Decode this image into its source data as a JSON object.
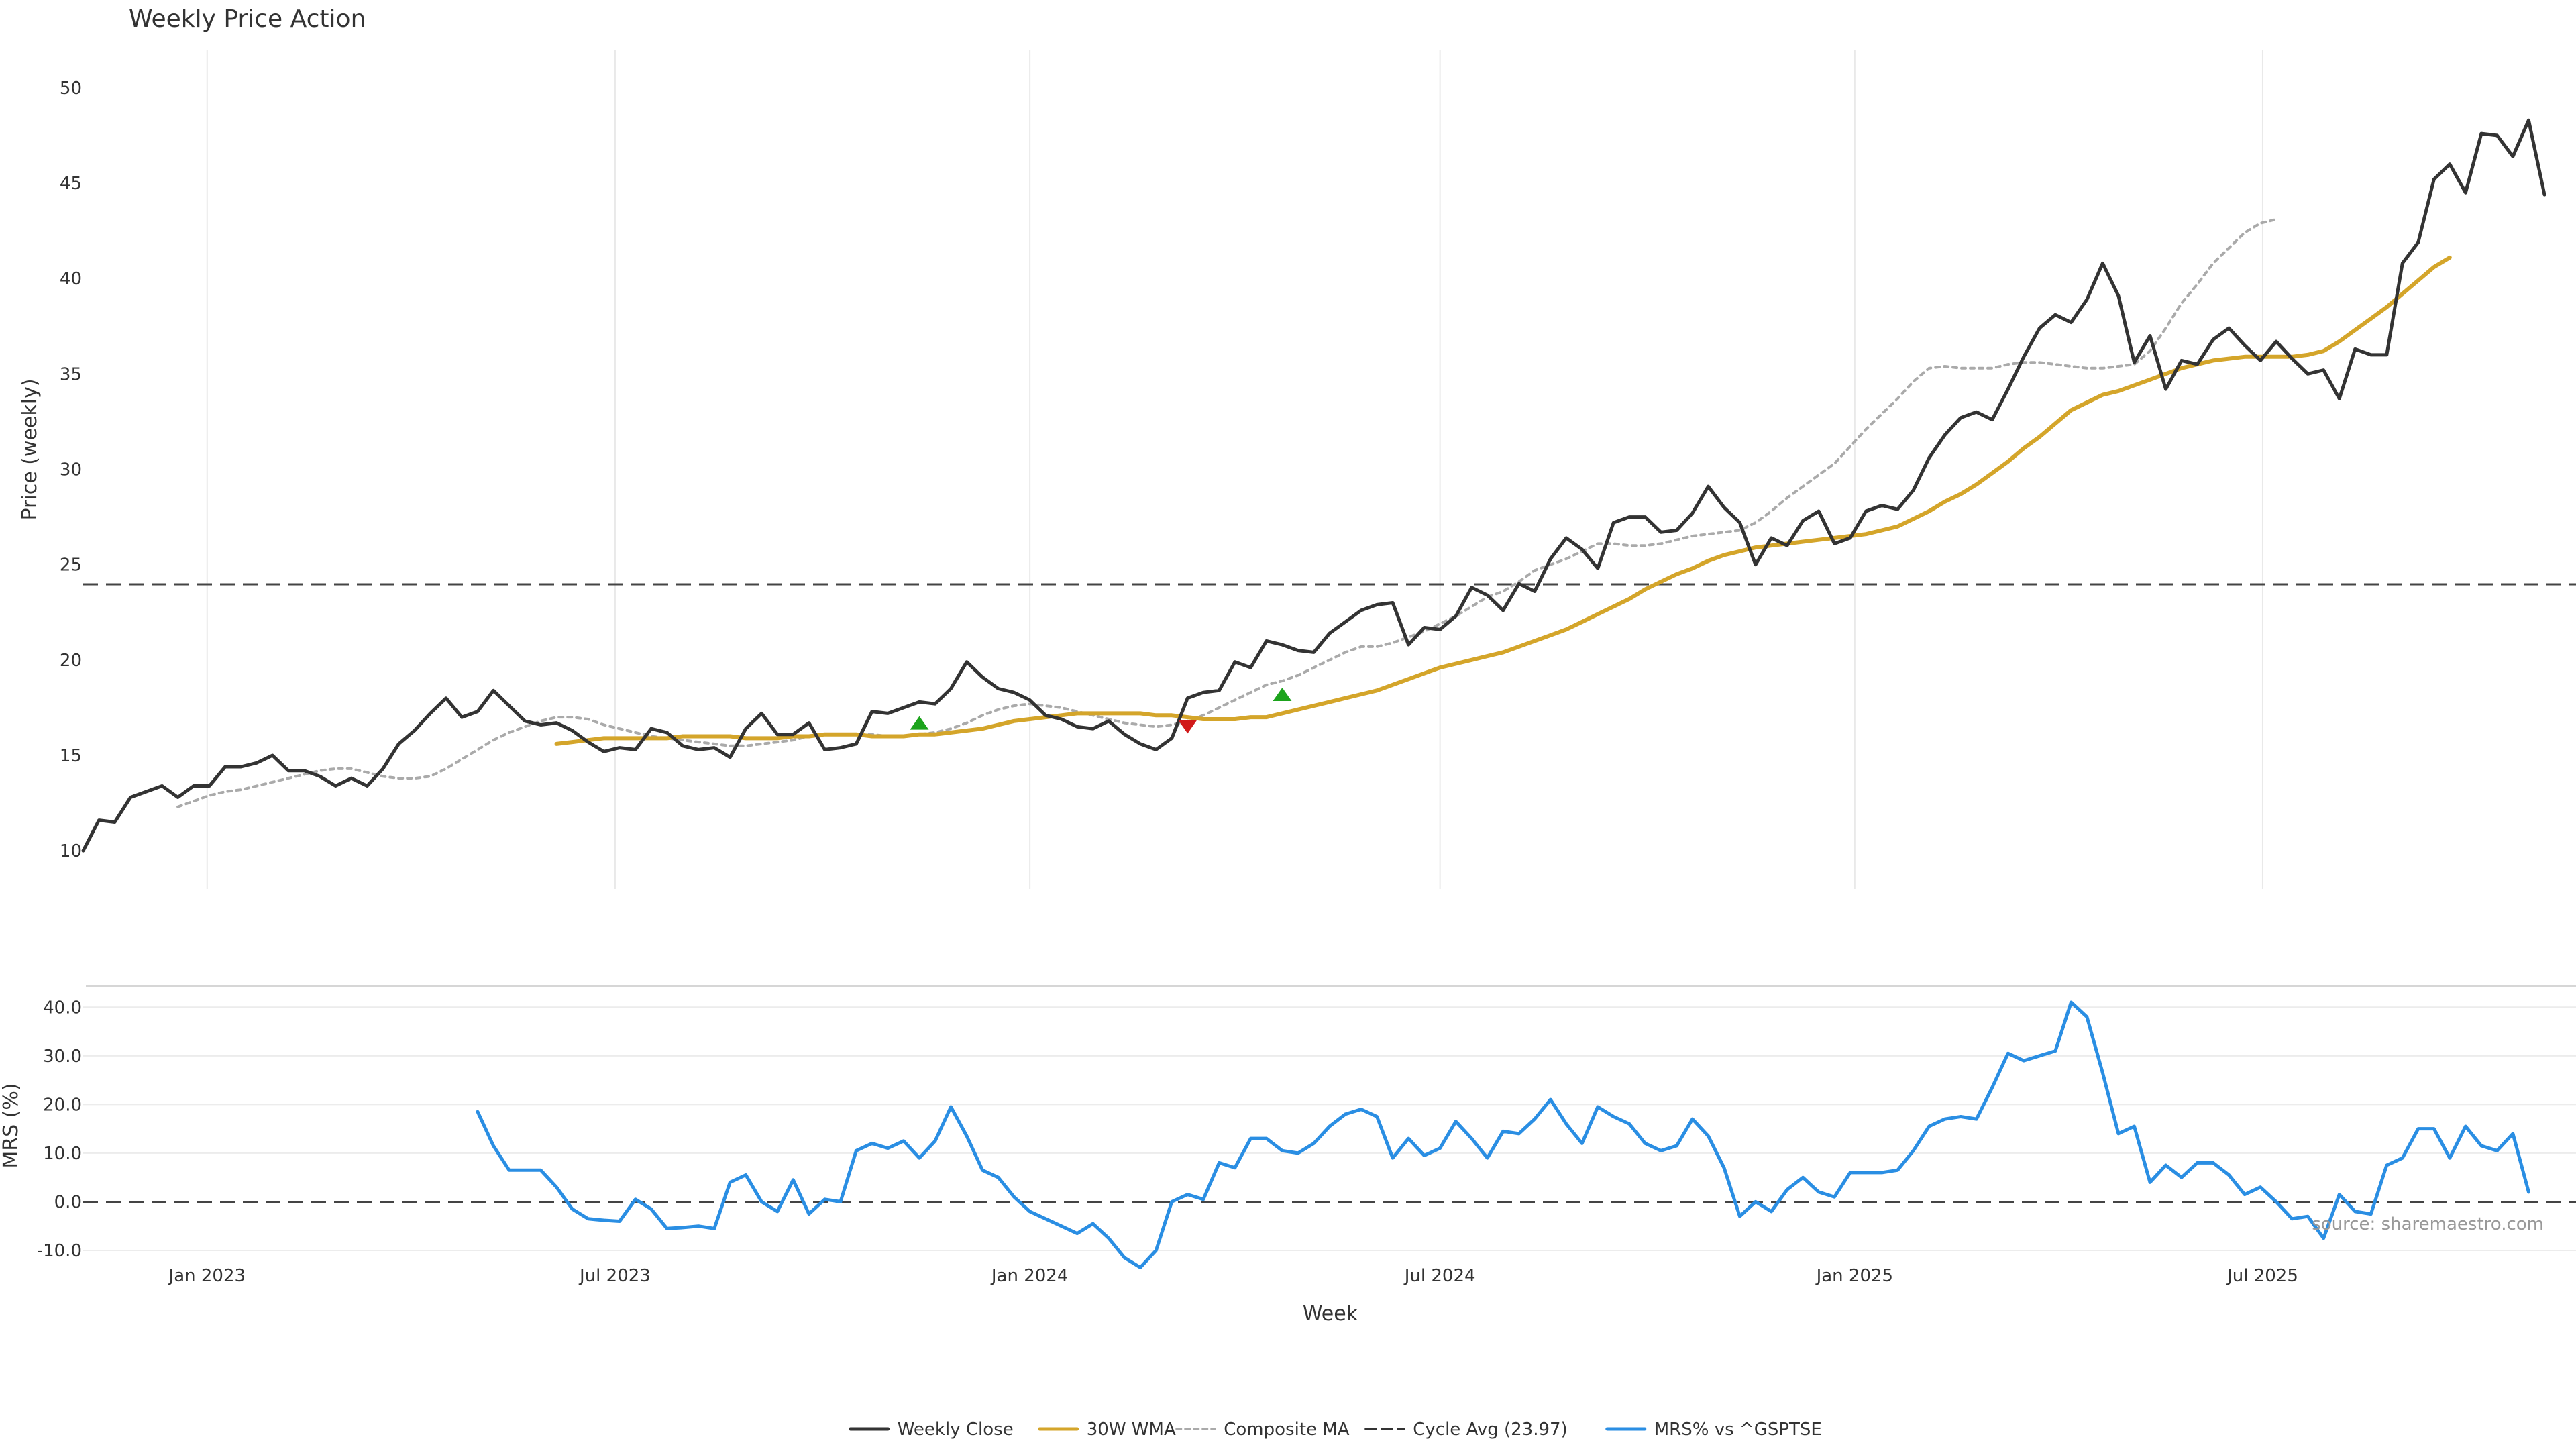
{
  "chart_data": [
    {
      "type": "line",
      "title": "Weekly Price Action",
      "xlabel": "",
      "ylabel": "Price (weekly)",
      "ylim": [
        8,
        52
      ],
      "yticks": [
        10,
        15,
        20,
        25,
        30,
        35,
        40,
        45,
        50
      ],
      "x_range": [
        "2022-11-07",
        "2025-11-17"
      ],
      "x_ticks": [
        {
          "date": "2023-01-01",
          "label": "Jan 2023"
        },
        {
          "date": "2023-07-01",
          "label": "Jul 2023"
        },
        {
          "date": "2024-01-01",
          "label": "Jan 2024"
        },
        {
          "date": "2024-07-01",
          "label": "Jul 2024"
        },
        {
          "date": "2025-01-01",
          "label": "Jan 2025"
        },
        {
          "date": "2025-07-01",
          "label": "Jul 2025"
        }
      ],
      "grid": "vertical",
      "cycle_avg": 23.97,
      "series": [
        {
          "name": "Weekly Close",
          "color": "#333333",
          "style": "solid",
          "start": "2022-11-07",
          "step_days": 7,
          "values": [
            10.0,
            11.6,
            11.5,
            12.8,
            13.1,
            13.4,
            12.8,
            13.4,
            13.4,
            14.4,
            14.4,
            14.6,
            15.0,
            14.2,
            14.2,
            13.9,
            13.4,
            13.8,
            13.4,
            14.3,
            15.6,
            16.3,
            17.2,
            18.0,
            17.0,
            17.3,
            18.4,
            17.6,
            16.8,
            16.6,
            16.7,
            16.3,
            15.7,
            15.2,
            15.4,
            15.3,
            16.4,
            16.2,
            15.5,
            15.3,
            15.4,
            14.9,
            16.4,
            17.2,
            16.1,
            16.1,
            16.7,
            15.3,
            15.4,
            15.6,
            17.3,
            17.2,
            17.5,
            17.8,
            17.7,
            18.5,
            19.9,
            19.1,
            18.5,
            18.3,
            17.9,
            17.1,
            16.9,
            16.5,
            16.4,
            16.8,
            16.1,
            15.6,
            15.3,
            15.9,
            18.0,
            18.3,
            18.4,
            19.9,
            19.6,
            21.0,
            20.8,
            20.5,
            20.4,
            21.4,
            22.0,
            22.6,
            22.9,
            23.0,
            20.8,
            21.7,
            21.6,
            22.3,
            23.8,
            23.4,
            22.6,
            24.0,
            23.6,
            25.3,
            26.4,
            25.8,
            24.8,
            27.2,
            27.5,
            27.5,
            26.7,
            26.8,
            27.7,
            29.1,
            28.0,
            27.2,
            25.0,
            26.4,
            26.0,
            27.3,
            27.8,
            26.1,
            26.4,
            27.8,
            28.1,
            27.9,
            28.9,
            30.6,
            31.8,
            32.7,
            33.0,
            32.6,
            34.2,
            35.9,
            37.4,
            38.1,
            37.7,
            38.9,
            40.8,
            39.1,
            35.6,
            37.0,
            34.2,
            35.7,
            35.5,
            36.8,
            37.4,
            36.5,
            35.7,
            36.7,
            35.8,
            35.0,
            35.2,
            33.7,
            36.3,
            36.0,
            36.0,
            40.8,
            41.9,
            45.2,
            46.0,
            44.5,
            47.6,
            47.5,
            46.4,
            48.3,
            44.4
          ]
        },
        {
          "name": "30W WMA",
          "color": "#d4a52a",
          "style": "solid",
          "start": "2023-06-05",
          "step_days": 7,
          "values": [
            15.6,
            15.7,
            15.8,
            15.9,
            15.9,
            15.9,
            15.9,
            15.9,
            16.0,
            16.0,
            16.0,
            16.0,
            15.9,
            15.9,
            15.9,
            16.0,
            16.0,
            16.1,
            16.1,
            16.1,
            16.0,
            16.0,
            16.0,
            16.1,
            16.1,
            16.2,
            16.3,
            16.4,
            16.6,
            16.8,
            16.9,
            17.0,
            17.1,
            17.2,
            17.2,
            17.2,
            17.2,
            17.2,
            17.1,
            17.1,
            17.0,
            16.9,
            16.9,
            16.9,
            17.0,
            17.0,
            17.2,
            17.4,
            17.6,
            17.8,
            18.0,
            18.2,
            18.4,
            18.7,
            19.0,
            19.3,
            19.6,
            19.8,
            20.0,
            20.2,
            20.4,
            20.7,
            21.0,
            21.3,
            21.6,
            22.0,
            22.4,
            22.8,
            23.2,
            23.7,
            24.1,
            24.5,
            24.8,
            25.2,
            25.5,
            25.7,
            25.9,
            26.0,
            26.1,
            26.2,
            26.3,
            26.4,
            26.5,
            26.6,
            26.8,
            27.0,
            27.4,
            27.8,
            28.3,
            28.7,
            29.2,
            29.8,
            30.4,
            31.1,
            31.7,
            32.4,
            33.1,
            33.5,
            33.9,
            34.1,
            34.4,
            34.7,
            35.0,
            35.3,
            35.5,
            35.7,
            35.8,
            35.9,
            35.9,
            35.9,
            35.9,
            36.0,
            36.2,
            36.7,
            37.3,
            37.9,
            38.5,
            39.2,
            39.9,
            40.6,
            41.1
          ]
        },
        {
          "name": "Composite MA",
          "color": "#aaaaaa",
          "style": "dotted",
          "start": "2022-12-19",
          "step_days": 7,
          "values": [
            12.3,
            12.6,
            12.9,
            13.1,
            13.2,
            13.4,
            13.6,
            13.8,
            14.0,
            14.2,
            14.3,
            14.3,
            14.1,
            13.9,
            13.8,
            13.8,
            13.9,
            14.3,
            14.8,
            15.3,
            15.8,
            16.2,
            16.5,
            16.8,
            17.0,
            17.0,
            16.9,
            16.6,
            16.4,
            16.2,
            16.0,
            15.9,
            15.8,
            15.7,
            15.6,
            15.5,
            15.5,
            15.6,
            15.7,
            15.8,
            16.0,
            16.1,
            16.1,
            16.1,
            16.1,
            16.0,
            16.0,
            16.1,
            16.2,
            16.4,
            16.7,
            17.1,
            17.4,
            17.6,
            17.7,
            17.6,
            17.5,
            17.3,
            17.1,
            16.9,
            16.7,
            16.6,
            16.5,
            16.6,
            16.8,
            17.1,
            17.5,
            17.9,
            18.3,
            18.7,
            18.9,
            19.2,
            19.6,
            20.0,
            20.4,
            20.7,
            20.7,
            20.9,
            21.2,
            21.5,
            21.9,
            22.3,
            22.8,
            23.3,
            23.6,
            24.1,
            24.7,
            25.0,
            25.3,
            25.7,
            26.1,
            26.1,
            26.0,
            26.0,
            26.1,
            26.3,
            26.5,
            26.6,
            26.7,
            26.8,
            27.2,
            27.8,
            28.5,
            29.1,
            29.7,
            30.3,
            31.2,
            32.1,
            32.9,
            33.7,
            34.6,
            35.3,
            35.4,
            35.3,
            35.3,
            35.3,
            35.5,
            35.6,
            35.6,
            35.5,
            35.4,
            35.3,
            35.3,
            35.4,
            35.5,
            36.2,
            37.4,
            38.7,
            39.7,
            40.8,
            41.6,
            42.4,
            42.9,
            43.1
          ]
        }
      ],
      "markers": [
        {
          "date": "2023-11-13",
          "value": 16.7,
          "direction": "up",
          "color": "#1ca31c"
        },
        {
          "date": "2024-03-11",
          "value": 16.5,
          "direction": "down",
          "color": "#d11a1a"
        },
        {
          "date": "2024-04-22",
          "value": 18.2,
          "direction": "up",
          "color": "#1ca31c"
        }
      ]
    },
    {
      "type": "line",
      "title": "",
      "xlabel": "Week",
      "ylabel": "MRS (%)",
      "ylim": [
        -14,
        45
      ],
      "yticks": [
        -10.0,
        0.0,
        10.0,
        20.0,
        30.0,
        40.0
      ],
      "ytick_labels": [
        "-10.0",
        "0.0",
        "10.0",
        "20.0",
        "30.0",
        "40.0"
      ],
      "grid": "horizontal",
      "zero_line": 0,
      "series": [
        {
          "name": "MRS% vs ^GSPTSE",
          "color": "#2a8ee3",
          "style": "solid",
          "start": "2023-05-01",
          "step_days": 7,
          "values": [
            18.5,
            11.5,
            6.5,
            6.5,
            6.5,
            3.0,
            -1.5,
            -3.5,
            -3.8,
            -4.0,
            0.5,
            -1.5,
            -5.5,
            -5.3,
            -5.0,
            -5.5,
            4.0,
            5.5,
            0.0,
            -2.0,
            4.5,
            -2.5,
            0.5,
            0.0,
            10.5,
            12.0,
            11.0,
            12.5,
            9.0,
            12.5,
            19.5,
            13.5,
            6.5,
            5.0,
            1.0,
            -2.0,
            -3.5,
            -5.0,
            -6.5,
            -4.5,
            -7.5,
            -11.5,
            -13.5,
            -10.0,
            0.0,
            1.5,
            0.5,
            8.0,
            7.0,
            13.0,
            13.0,
            10.5,
            10.0,
            12.0,
            15.5,
            18.0,
            19.0,
            17.5,
            9.0,
            13.0,
            9.5,
            11.0,
            16.5,
            13.0,
            9.0,
            14.5,
            14.0,
            17.0,
            21.0,
            16.0,
            12.0,
            19.5,
            17.5,
            16.0,
            12.0,
            10.5,
            11.5,
            17.0,
            13.5,
            7.0,
            -3.0,
            0.0,
            -2.0,
            2.5,
            5.0,
            2.0,
            1.0,
            6.0,
            6.0,
            6.0,
            6.5,
            10.5,
            15.5,
            17.0,
            17.5,
            17.0,
            23.5,
            30.5,
            29.0,
            30.0,
            31.0,
            41.0,
            38.0,
            26.5,
            14.0,
            15.5,
            4.0,
            7.5,
            5.0,
            8.0,
            8.0,
            5.5,
            1.5,
            3.0,
            0.0,
            -3.5,
            -3.0,
            -7.5,
            1.5,
            -2.0,
            -2.5,
            7.5,
            9.0,
            15.0,
            15.0,
            9.0,
            15.5,
            11.5,
            10.5,
            14.0,
            2.0
          ]
        }
      ]
    }
  ],
  "legend": {
    "items": [
      {
        "label": "Weekly Close",
        "color": "#333333",
        "style": "solid"
      },
      {
        "label": "30W WMA",
        "color": "#d4a52a",
        "style": "solid"
      },
      {
        "label": "Composite MA",
        "color": "#aaaaaa",
        "style": "dotted"
      },
      {
        "label": "Cycle Avg (23.97)",
        "color": "#333333",
        "style": "dashed"
      },
      {
        "label": "MRS% vs ^GSPTSE",
        "color": "#2a8ee3",
        "style": "solid"
      }
    ]
  },
  "source_note": "source: sharemaestro.com"
}
